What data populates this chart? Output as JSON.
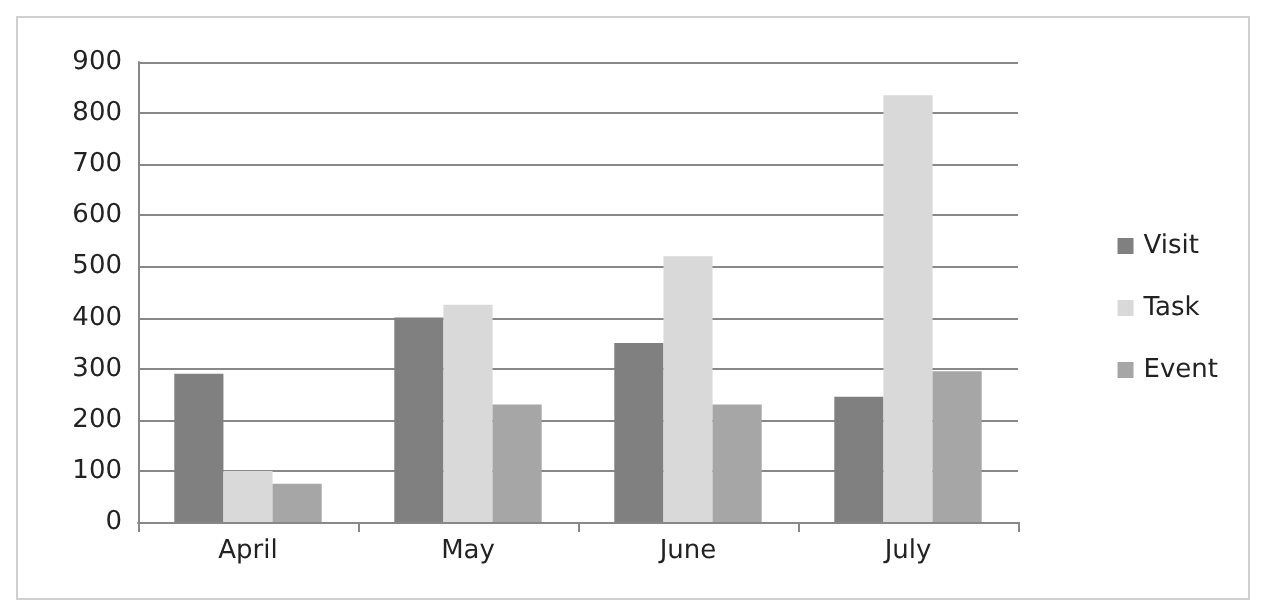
{
  "chart_data": {
    "type": "bar",
    "categories": [
      "April",
      "May",
      "June",
      "July"
    ],
    "series": [
      {
        "name": "Visit",
        "color": "#808080",
        "values": [
          290,
          400,
          350,
          245
        ]
      },
      {
        "name": "Task",
        "color": "#d9d9d9",
        "values": [
          100,
          425,
          520,
          835
        ]
      },
      {
        "name": "Event",
        "color": "#a6a6a6",
        "values": [
          75,
          230,
          230,
          295
        ]
      }
    ],
    "ylim": [
      0,
      900
    ],
    "yticks": [
      0,
      100,
      200,
      300,
      400,
      500,
      600,
      700,
      800,
      900
    ],
    "grid": "y",
    "legend": "right"
  }
}
